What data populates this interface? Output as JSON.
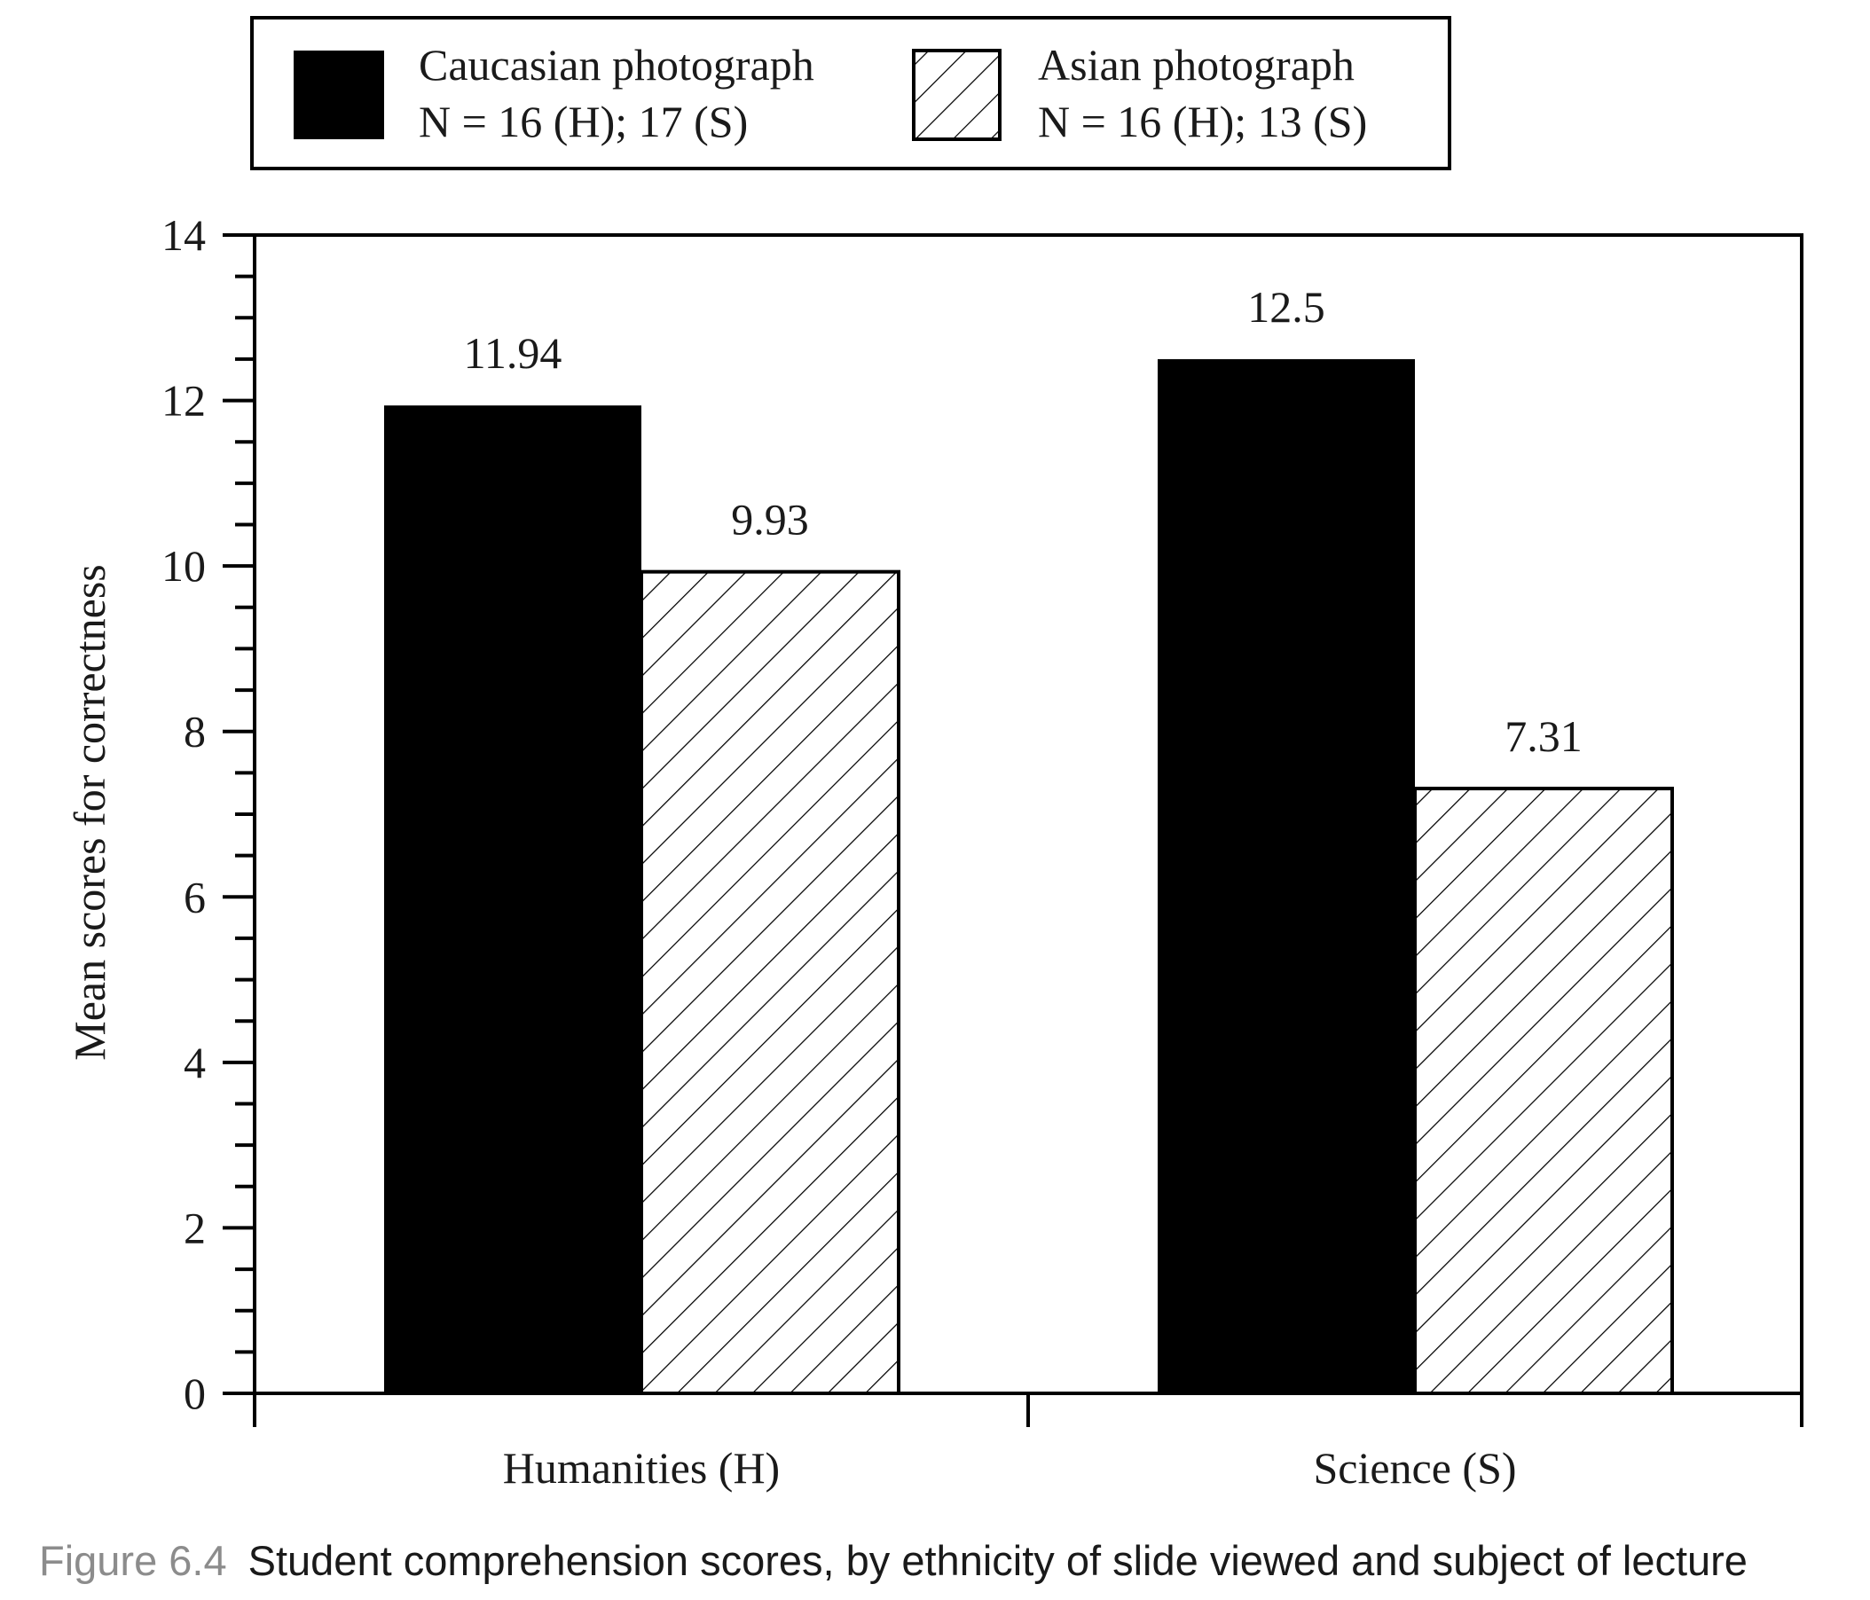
{
  "chart_data": {
    "type": "bar",
    "categories": [
      "Humanities (H)",
      "Science (S)"
    ],
    "series": [
      {
        "name": "Caucasian photograph",
        "sample": "N = 16 (H); 17 (S)",
        "values": [
          11.94,
          12.5
        ],
        "value_labels": [
          "11.94",
          "12.5"
        ],
        "fill": "solid",
        "color": "#000000"
      },
      {
        "name": "Asian photograph",
        "sample": "N = 16 (H); 13 (S)",
        "values": [
          9.93,
          7.31
        ],
        "value_labels": [
          "9.93",
          "7.31"
        ],
        "fill": "hatched",
        "color": "#000000"
      }
    ],
    "xlabel": "",
    "ylabel": "Mean scores for correctness",
    "ylim": [
      0,
      14
    ],
    "yticks": [
      "0",
      "2",
      "4",
      "6",
      "8",
      "10",
      "12",
      "14"
    ],
    "minor_tick_step": 0.5,
    "grid": false,
    "legend_position": "top"
  },
  "caption": {
    "label": "Figure 6.4",
    "text": "Student comprehension scores, by ethnicity of slide viewed and subject of lecture"
  }
}
